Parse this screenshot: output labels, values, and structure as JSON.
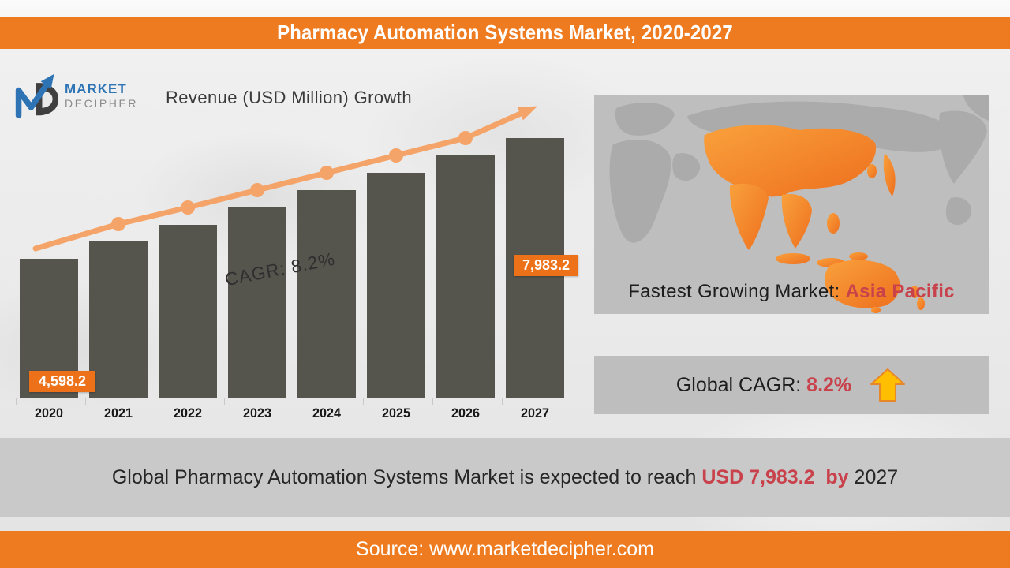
{
  "header": {
    "title": "Pharmacy Automation Systems Market, 2020-2027"
  },
  "logo": {
    "line1": "MARKET",
    "line2": "DECIPHER"
  },
  "chart": {
    "subtitle": "Revenue (USD Million) Growth",
    "cagr_label": "CAGR: 8.2%",
    "first_value_label": "4,598.2",
    "last_value_label": "7,983.2"
  },
  "chart_data": {
    "type": "bar",
    "title": "Revenue (USD Million) Growth",
    "categories": [
      "2020",
      "2021",
      "2022",
      "2023",
      "2024",
      "2025",
      "2026",
      "2027"
    ],
    "values": [
      4598.2,
      4975.3,
      5383.2,
      5824.7,
      6302.3,
      6819.1,
      7378.2,
      7983.2
    ],
    "value_labels_shown": [
      {
        "category": "2020",
        "label": "4,598.2"
      },
      {
        "category": "2027",
        "label": "7,983.2"
      }
    ],
    "cagr_percent": 8.2,
    "xlabel": "",
    "ylabel": "Revenue (USD Million)",
    "ylim": [
      2430,
      9400
    ],
    "y_scale": "log",
    "grid": false,
    "legend": "none",
    "bar_color": "#56554D",
    "trendline": {
      "type": "line-with-arrow",
      "color": "#F5A469",
      "markers": true
    }
  },
  "right_panel": {
    "caption_prefix": "Fastest Growing Market: ",
    "caption_highlight": "Asia Pacific",
    "cagr_prefix": "Global CAGR: ",
    "cagr_value": "8.2%"
  },
  "banner": {
    "prefix": "Global Pharmacy Automation Systems Market is expected to reach ",
    "highlight": "USD 7,983.2  by",
    "suffix": " 2027"
  },
  "footer": {
    "source": "Source: www.marketdecipher.com"
  },
  "colors": {
    "accent_orange": "#EF7B20",
    "badge_orange": "#ED7118",
    "trend_orange": "#F5A469",
    "bar_gray": "#56554D",
    "highlight_red": "#C8414B",
    "arrow_yellow_fill": "#FFBF00",
    "arrow_yellow_stroke": "#E8872A",
    "card_gray": "#BEBEBE",
    "band_gray": "#C9C9C9",
    "logo_blue": "#2E74B5",
    "logo_dark": "#3F3F3F",
    "map_land_gray": "#ABABAB"
  }
}
